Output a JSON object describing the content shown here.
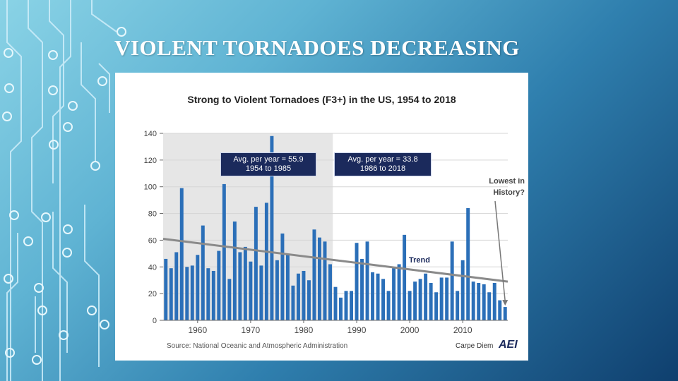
{
  "slide": {
    "title": "VIOLENT TORNADOES DECREASING"
  },
  "colors": {
    "bar": "#2b6fb8",
    "trend": "#8a8a8a",
    "shade": "#e6e6e6",
    "box": "#1b2a5c"
  },
  "chart_data": {
    "type": "bar",
    "title": "Strong to Violent Tornadoes (F3+) in the US, 1954 to 2018",
    "xlabel": "",
    "ylabel": "",
    "ylim": [
      0,
      140
    ],
    "yticks": [
      0,
      20,
      40,
      60,
      80,
      100,
      120,
      140
    ],
    "xticks": [
      1960,
      1970,
      1980,
      1990,
      2000,
      2010
    ],
    "grid": true,
    "shaded_range": [
      1954,
      1985
    ],
    "x": [
      1954,
      1955,
      1956,
      1957,
      1958,
      1959,
      1960,
      1961,
      1962,
      1963,
      1964,
      1965,
      1966,
      1967,
      1968,
      1969,
      1970,
      1971,
      1972,
      1973,
      1974,
      1975,
      1976,
      1977,
      1978,
      1979,
      1980,
      1981,
      1982,
      1983,
      1984,
      1985,
      1986,
      1987,
      1988,
      1989,
      1990,
      1991,
      1992,
      1993,
      1994,
      1995,
      1996,
      1997,
      1998,
      1999,
      2000,
      2001,
      2002,
      2003,
      2004,
      2005,
      2006,
      2007,
      2008,
      2009,
      2010,
      2011,
      2012,
      2013,
      2014,
      2015,
      2016,
      2017,
      2018
    ],
    "values": [
      46,
      39,
      51,
      99,
      40,
      41,
      49,
      71,
      39,
      37,
      52,
      102,
      31,
      74,
      51,
      55,
      44,
      85,
      41,
      88,
      138,
      45,
      65,
      49,
      26,
      35,
      37,
      30,
      68,
      62,
      59,
      42,
      25,
      17,
      22,
      22,
      58,
      46,
      59,
      36,
      35,
      31,
      22,
      39,
      42,
      64,
      22,
      29,
      31,
      35,
      28,
      21,
      32,
      32,
      59,
      22,
      45,
      84,
      29,
      28,
      27,
      21,
      28,
      15,
      10
    ],
    "trend": {
      "label": "Trend",
      "start": [
        1954,
        61
      ],
      "end": [
        2018,
        29
      ]
    },
    "annotations": [
      {
        "text": "Avg. per year = 55.9",
        "sub": "1954 to 1985"
      },
      {
        "text": "Avg. per year = 33.8",
        "sub": "1986 to 2018"
      },
      {
        "text": "Lowest in",
        "sub": "History?"
      }
    ],
    "source": "Source: National Oceanic and Atmospheric Administration",
    "brand": "Carpe Diem",
    "logo": "AEI"
  }
}
